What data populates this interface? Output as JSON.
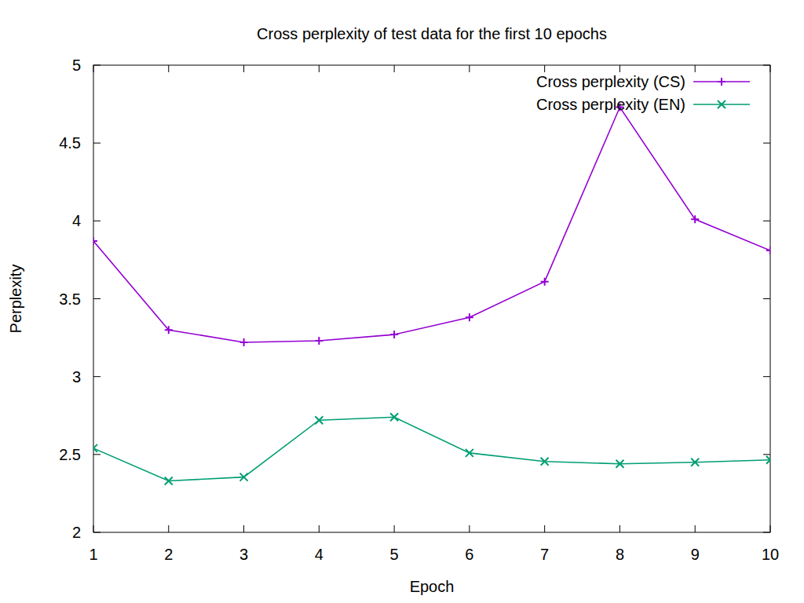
{
  "chart_data": {
    "type": "line",
    "title": "Cross perplexity of test data for the first 10 epochs",
    "x_label": "Epoch",
    "y_label": "Perplexity",
    "x": [
      1,
      2,
      3,
      4,
      5,
      6,
      7,
      8,
      9,
      10
    ],
    "series": [
      {
        "name": "Cross perplexity (CS)",
        "color": "#9400d3",
        "marker": "plus",
        "values": [
          3.87,
          3.3,
          3.22,
          3.23,
          3.27,
          3.38,
          3.61,
          4.73,
          4.01,
          3.81
        ]
      },
      {
        "name": "Cross perplexity (EN)",
        "color": "#009e73",
        "marker": "cross",
        "values": [
          2.54,
          2.33,
          2.355,
          2.72,
          2.74,
          2.51,
          2.455,
          2.44,
          2.45,
          2.465
        ]
      }
    ],
    "xlim": [
      1,
      10
    ],
    "xticks": [
      1,
      2,
      3,
      4,
      5,
      6,
      7,
      8,
      9,
      10
    ],
    "ylim": [
      2,
      5
    ],
    "yticks": [
      2,
      2.5,
      3,
      3.5,
      4,
      4.5,
      5
    ],
    "grid": false,
    "legend": "top-right"
  }
}
